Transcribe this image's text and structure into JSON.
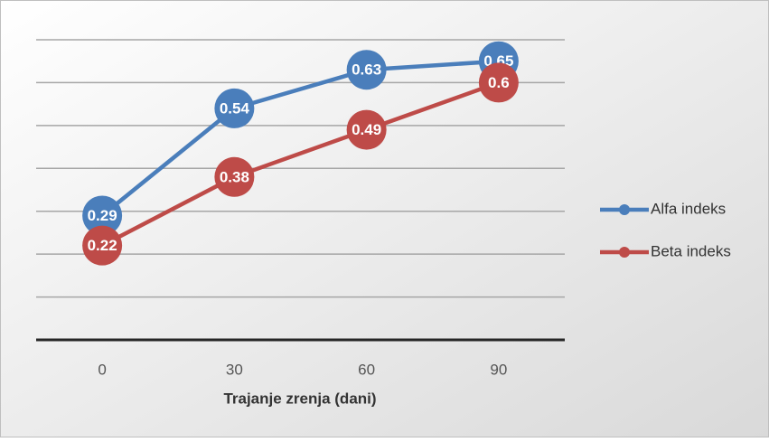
{
  "chart_data": {
    "type": "line",
    "x_label": "Trajanje zrenja (dani)",
    "categories": [
      "0",
      "30",
      "60",
      "90"
    ],
    "series": [
      {
        "name": "Alfa indeks",
        "color": "#4a7ebb",
        "values": [
          0.29,
          0.54,
          0.63,
          0.65
        ]
      },
      {
        "name": "Beta indeks",
        "color": "#be4b48",
        "values": [
          0.22,
          0.38,
          0.49,
          0.6
        ]
      }
    ],
    "ylim": [
      0,
      0.7
    ],
    "yticks": [
      0,
      0.1,
      0.2,
      0.3,
      0.4,
      0.5,
      0.6,
      0.7
    ],
    "grid": true,
    "legend": "right",
    "data_labels": true
  }
}
